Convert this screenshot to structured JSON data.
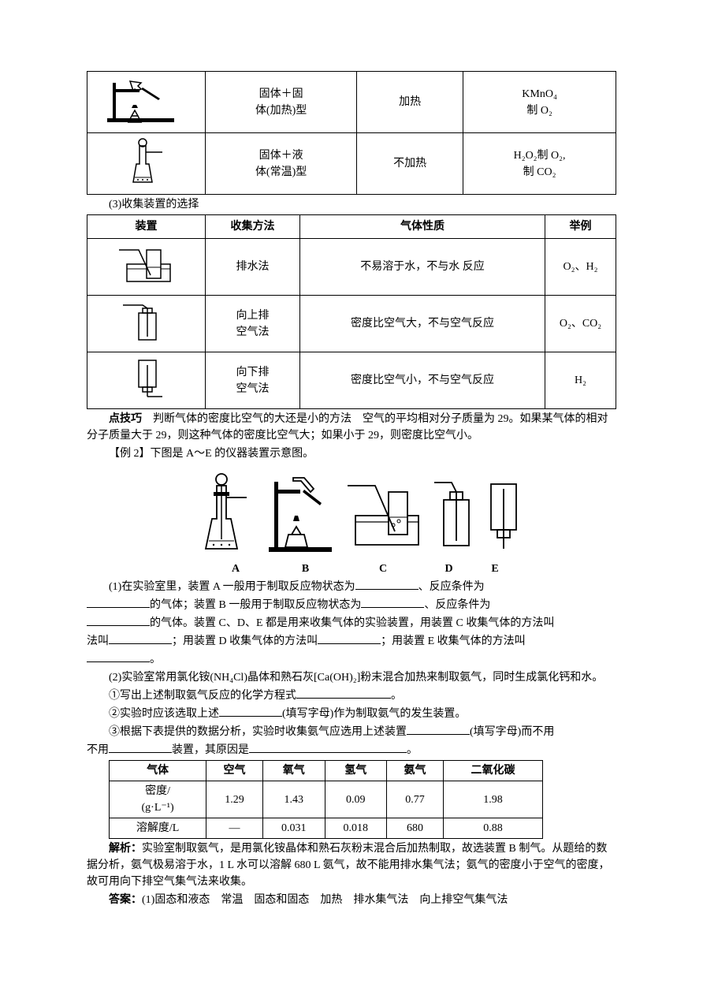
{
  "table1": {
    "rows": [
      {
        "type": "固体＋固\n体(加热)型",
        "cond": "加热",
        "example": "KMnO₄\n制 O₂"
      },
      {
        "type": "固体＋液\n体(常温)型",
        "cond": "不加热",
        "example": "H₂O₂制 O₂,\n制 CO₂"
      }
    ]
  },
  "section3": "(3)收集装置的选择",
  "table2": {
    "header": [
      "装置",
      "收集方法",
      "气体性质",
      "举例"
    ],
    "rows": [
      {
        "method": "排水法",
        "prop": "不易溶于水，不与水 反应",
        "ex": "O₂、H₂"
      },
      {
        "method": "向上排\n空气法",
        "prop": "密度比空气大，不与空气反应",
        "ex": "O₂、CO₂"
      },
      {
        "method": "向下排\n空气法",
        "prop": "密度比空气小，不与空气反应",
        "ex": "H₂"
      }
    ]
  },
  "tip_label": "点技巧",
  "tip_text": "　判断气体的密度比空气的大还是小的方法　空气的平均相对分子质量为 29。如果某气体的相对分子质量大于 29，则这种气体的密度比空气大；如果小于 29，则密度比空气小。",
  "example2_label": "【例 2】",
  "example2_text": "下图是 A～E 的仪器装置示意图。",
  "apparatus_labels": [
    "A",
    "B",
    "C",
    "D",
    "E"
  ],
  "q1_a": "(1)在实验室里，装置 A 一般用于制取反应物状态为",
  "q1_b": "、反应条件为",
  "q1_c": "的气体；装置 B 一般用于制取反应物状态为",
  "q1_d": "、反应条件为",
  "q1_e": "的气体。装置 C、D、E 都是用来收集气体的实验装置，用装置 C 收集气体的方法叫",
  "q1_f": "；用装置 D 收集气体的方法叫",
  "q1_g": "；用装置 E 收集气体的方法叫",
  "q1_h": "。",
  "q2_intro": "(2)实验室常用氯化铵(NH₄Cl)晶体和熟石灰[Ca(OH)₂]粉末混合加热来制取氨气，同时生成氯化钙和水。",
  "q2_1": "①写出上述制取氨气反应的化学方程式",
  "q2_2a": "②实验时应该选取上述",
  "q2_2b": "(填写字母)作为制取氨气的发生装置。",
  "q2_3a": "③根据下表提供的数据分析，实验时收集氨气应选用上述装置",
  "q2_3b": "(填写字母)而不用",
  "q2_3c": "装置，其原因是",
  "data_table": {
    "header": [
      "气体",
      "空气",
      "氧气",
      "氢气",
      "氨气",
      "二氧化碳"
    ],
    "rows": [
      [
        "密度/\n(g·L⁻¹)",
        "1.29",
        "1.43",
        "0.09",
        "0.77",
        "1.98"
      ],
      [
        "溶解度/L",
        "—",
        "0.031",
        "0.018",
        "680",
        "0.88"
      ]
    ]
  },
  "analysis_label": "解析：",
  "analysis_text": "实验室制取氨气，是用氯化铵晶体和熟石灰粉末混合后加热制取，故选装置 B 制气。从题给的数据分析，氨气极易溶于水，1 L 水可以溶解 680 L 氨气，故不能用排水集气法；氨气的密度小于空气的密度，故可用向下排空气集气法来收集。",
  "answer_label": "答案：",
  "answer_text": "(1)固态和液态　常温　固态和固态　加热　排水集气法　向上排空气集气法"
}
